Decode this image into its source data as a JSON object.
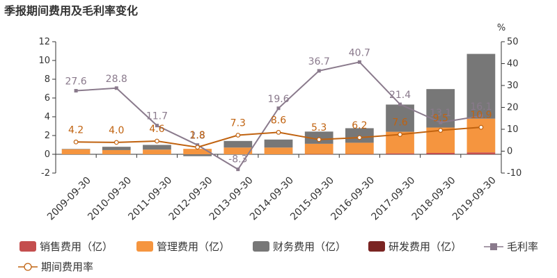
{
  "chart_data": {
    "type": "bar",
    "title": "季报期间费用及毛利率变化",
    "categories": [
      "2009-09-30",
      "2010-09-30",
      "2011-09-30",
      "2012-09-30",
      "2013-09-30",
      "2014-09-30",
      "2015-09-30",
      "2016-09-30",
      "2017-09-30",
      "2018-09-30",
      "2019-09-30"
    ],
    "series": [
      {
        "name": "销售费用（亿）",
        "kind": "bar",
        "axis": "left",
        "color": "#c44e4e",
        "values": [
          0.0,
          0.0,
          0.0,
          0.0,
          0.0,
          0.0,
          0.02,
          0.03,
          0.1,
          0.15,
          0.2
        ]
      },
      {
        "name": "管理费用（亿）",
        "kind": "bar",
        "axis": "left",
        "color": "#f5953f",
        "values": [
          0.55,
          0.45,
          0.5,
          0.58,
          0.72,
          0.72,
          1.1,
          1.2,
          2.3,
          2.7,
          3.6
        ]
      },
      {
        "name": "财务费用（亿）",
        "kind": "bar",
        "axis": "left",
        "color": "#777777",
        "values": [
          0.02,
          0.35,
          0.5,
          -0.2,
          0.7,
          0.85,
          1.3,
          1.55,
          2.9,
          4.1,
          6.9
        ]
      },
      {
        "name": "研发费用（亿）",
        "kind": "bar",
        "axis": "left",
        "color": "#7a2422",
        "values": [
          0,
          0,
          0,
          0,
          0,
          0,
          0,
          0,
          0,
          0,
          0
        ]
      },
      {
        "name": "毛利率",
        "kind": "line",
        "axis": "right",
        "color": "#8a7a8c",
        "marker": "square",
        "values": [
          27.6,
          28.8,
          11.7,
          2.8,
          -8.3,
          19.6,
          36.7,
          40.7,
          21.4,
          13.1,
          16.1
        ],
        "labels": [
          "27.6",
          "28.8",
          "11.7",
          "2.8",
          "-8.3",
          "19.6",
          "36.7",
          "40.7",
          "21.4",
          "13.1",
          "16.1"
        ]
      },
      {
        "name": "期间费用率",
        "kind": "line",
        "axis": "right",
        "color": "#c0620f",
        "marker": "circle",
        "values": [
          4.2,
          4.0,
          4.6,
          1.8,
          7.3,
          8.6,
          5.3,
          6.2,
          7.6,
          9.5,
          10.9
        ],
        "labels": [
          "4.2",
          "4.0",
          "4.6",
          "1.8",
          "7.3",
          "8.6",
          "5.3",
          "6.2",
          "7.6",
          "9.5",
          "10.9"
        ]
      }
    ],
    "y_left": {
      "min": -2,
      "max": 12,
      "ticks": [
        -2,
        0,
        2,
        4,
        6,
        8,
        10,
        12
      ]
    },
    "y_right": {
      "min": -10,
      "max": 50,
      "ticks": [
        -10,
        0,
        10,
        20,
        30,
        40,
        50
      ],
      "unit": "%"
    },
    "legend_position": "bottom",
    "grid": false
  }
}
